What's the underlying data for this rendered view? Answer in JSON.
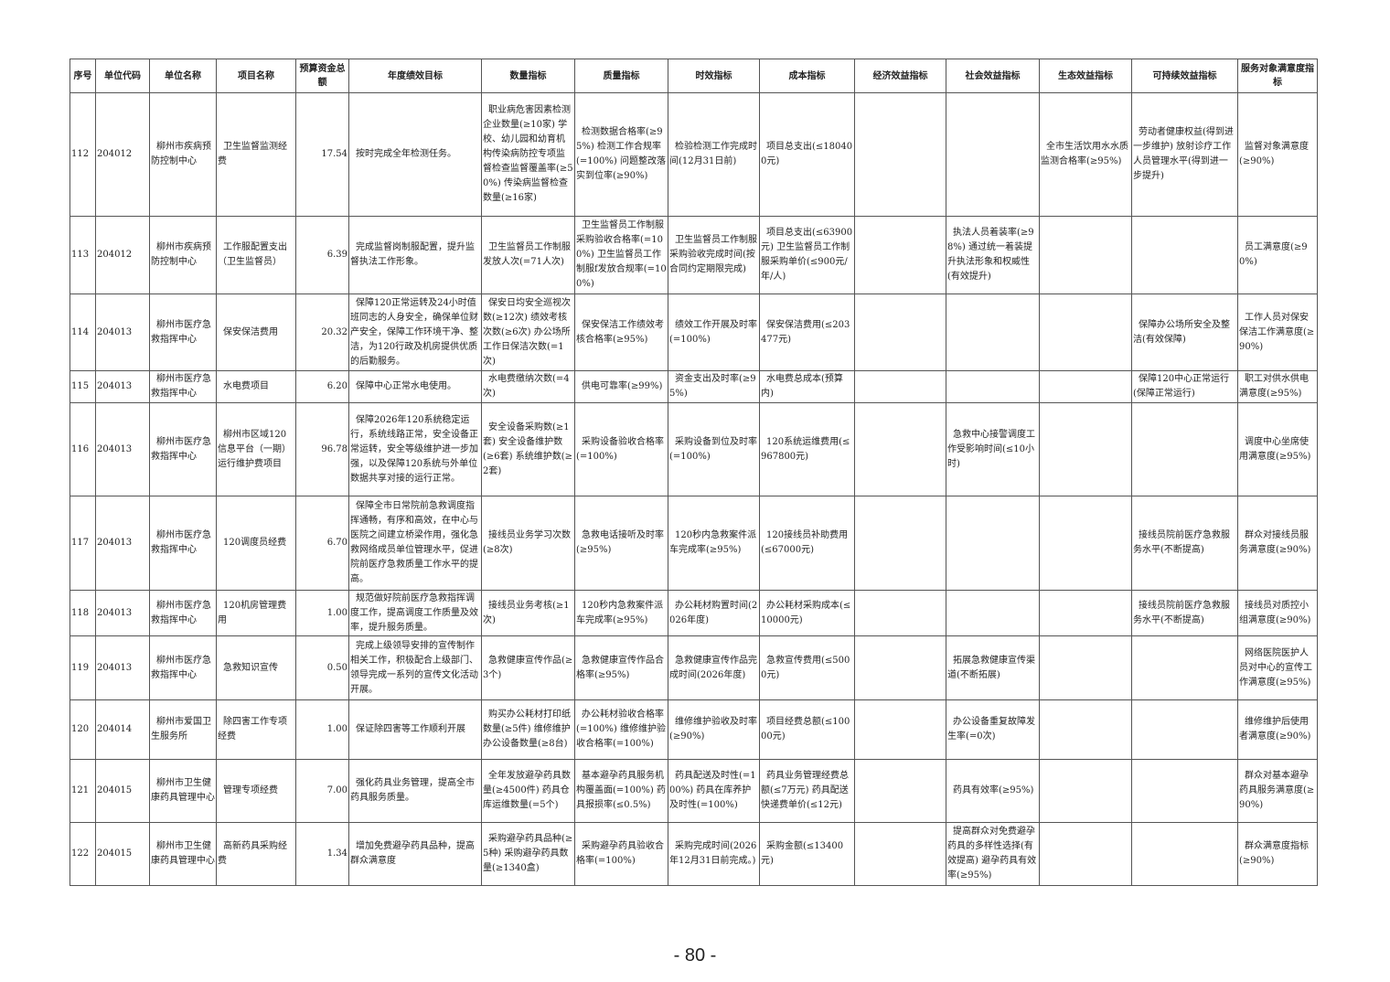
{
  "table": {
    "headers": [
      "序号",
      "单位代码",
      "单位名称",
      "项目名称",
      "预算资金总额",
      "年度绩效目标",
      "数量指标",
      "质量指标",
      "时效指标",
      "成本指标",
      "经济效益指标",
      "社会效益指标",
      "生态效益指标",
      "可持续效益指标",
      "服务对象满意度指标"
    ],
    "rows": [
      [
        "112",
        "204012",
        "柳州市疾病预防控制中心",
        "卫生监督监测经费",
        "17.54",
        "按时完成全年检测任务。",
        "职业病危害因素检测企业数量(≥10家) 学校、幼儿园和幼育机构传染病防控专项监督检查监督覆盖率(≥50%) 传染病监督检查数量(≥16家)",
        "检测数据合格率(≥95%) 检测工作合规率(=100%) 问题整改落实到位率(≥90%)",
        "检验检测工作完成时间(12月31日前)",
        "项目总支出(≤180400元)",
        "",
        "",
        "全市生活饮用水水质监测合格率(≥95%)",
        "劳动者健康权益(得到进一步维护) 放射诊疗工作人员管理水平(得到进一步提升)",
        "监督对象满意度(≥90%)"
      ],
      [
        "113",
        "204012",
        "柳州市疾病预防控制中心",
        "工作服配置支出（卫生监督员）",
        "6.39",
        "完成监督岗制服配置，提升监督执法工作形象。",
        "卫生监督员工作制服发放人次(=71人次)",
        "卫生监督员工作制服采购验收合格率(=100%) 卫生监督员工作制服f发放合规率(=100%)",
        "卫生监督员工作制服采购验收完成时间(按合同约定期限完成)",
        "项目总支出(≤63900元) 卫生监督员工作制服采购单价(≤900元/年/人)",
        "",
        "执法人员着装率(≥98%) 通过统一着装提升执法形象和权威性(有效提升)",
        "",
        "",
        "员工满意度(≥90%)"
      ],
      [
        "114",
        "204013",
        "柳州市医疗急救指挥中心",
        "保安保洁费用",
        "20.32",
        "保障120正常运转及24小时值班同志的人身安全，确保单位财产安全，保障工作环境干净、整洁，为120行政及机房提供优质的后勤服务。",
        "保安日均安全巡视次数(≥12次) 绩效考核次数(≥6次) 办公场所工作日保洁次数(=1次)",
        "保安保洁工作绩效考核合格率(≥95%)",
        "绩效工作开展及时率(=100%)",
        "保安保洁费用(≤203477元)",
        "",
        "",
        "",
        "保障办公场所安全及整洁(有效保障)",
        "工作人员对保安保洁工作满意度(≥90%)"
      ],
      [
        "115",
        "204013",
        "柳州市医疗急救指挥中心",
        "水电费项目",
        "6.20",
        "保障中心正常水电使用。",
        "水电费缴纳次数(=4次)",
        "供电可靠率(≥99%)",
        "资金支出及时率(≥95%)",
        "水电费总成本(预算内)",
        "",
        "",
        "",
        "保障120中心正常运行(保障正常运行)",
        "职工对供水供电满意度(≥95%)"
      ],
      [
        "116",
        "204013",
        "柳州市医疗急救指挥中心",
        "柳州市区域120信息平台（一期）运行维护费项目",
        "96.78",
        "保障2026年120系统稳定运行，系统线路正常，安全设备正常运转，安全等级维护进一步加强，以及保障120系统与外单位数据共享对接的运行正常。",
        "安全设备采购数(≥1套) 安全设备维护数(≥6套) 系统维护数(≥2套)",
        "采购设备验收合格率(=100%)",
        "采购设备到位及时率(=100%)",
        "120系统运维费用(≤967800元)",
        "",
        "急救中心接警调度工作受影响时间(≤10小时)",
        "",
        "",
        "调度中心坐席使用满意度(≥95%)"
      ],
      [
        "117",
        "204013",
        "柳州市医疗急救指挥中心",
        "120调度员经费",
        "6.70",
        "保障全市日常院前急救调度指挥通畅，有序和高效，在中心与医院之间建立桥梁作用，强化急救网络成员单位管理水平，促进院前医疗急救质量工作水平的提高。",
        "接线员业务学习次数(≥8次)",
        "急救电话接听及时率(≥95%)",
        "120秒内急救案件派车完成率(≥95%)",
        "120接线员补助费用(≤67000元)",
        "",
        "",
        "",
        "接线员院前医疗急救服务水平(不断提高)",
        "群众对接线员服务满意度(≥90%)"
      ],
      [
        "118",
        "204013",
        "柳州市医疗急救指挥中心",
        "120机房管理费用",
        "1.00",
        "规范做好院前医疗急救指挥调度工作，提高调度工作质量及效率，提升服务质量。",
        "接线员业务考核(≥1次)",
        "120秒内急救案件派车完成率(≥95%)",
        "办公耗材购置时间(2026年度)",
        "办公耗材采购成本(≤10000元)",
        "",
        "",
        "",
        "接线员院前医疗急救服务水平(不断提高)",
        "接线员对质控小组满意度(≥90%)"
      ],
      [
        "119",
        "204013",
        "柳州市医疗急救指挥中心",
        "急救知识宣传",
        "0.50",
        "完成上级领导安排的宣传制作相关工作，积极配合上级部门、领导完成一系列的宣传文化活动开展。",
        "急救健康宣传作品(≥3个)",
        "急救健康宣传作品合格率(≥95%)",
        "急救健康宣传作品完成时间(2026年度)",
        "急救宣传费用(≤5000元)",
        "",
        "拓展急救健康宣传渠道(不断拓展)",
        "",
        "",
        "网络医院医护人员对中心的宣传工作满意度(≥95%)"
      ],
      [
        "120",
        "204014",
        "柳州市爱国卫生服务所",
        "除四害工作专项经费",
        "1.00",
        "保证除四害等工作顺利开展",
        "购买办公耗材打印纸数量(≥5件) 维修维护办公设备数量(≥8台)",
        "办公耗材验收合格率(=100%) 维修维护验收合格率(=100%)",
        "维修维护验收及时率(≥90%)",
        "项目经费总额(≤10000元)",
        "",
        "办公设备重复故障发生率(=0次)",
        "",
        "",
        "维修维护后使用者满意度(≥90%)"
      ],
      [
        "121",
        "204015",
        "柳州市卫生健康药具管理中心",
        "管理专项经费",
        "7.00",
        "强化药具业务管理，提高全市药具服务质量。",
        "全年发放避孕药具数量(≥4500件) 药具仓库运维数量(=5个)",
        "基本避孕药具服务机构覆盖面(=100%) 药具报损率(≤0.5%)",
        "药具配送及时性(=100%) 药具在库养护及时性(=100%)",
        "药具业务管理经费总额(≤7万元) 药具配送快递费单价(≤12元)",
        "",
        "药具有效率(≥95%)",
        "",
        "",
        "群众对基本避孕药具服务满意度(≥90%)"
      ],
      [
        "122",
        "204015",
        "柳州市卫生健康药具管理中心",
        "高新药具采购经费",
        "1.34",
        "增加免费避孕药具品种，提高群众满意度",
        "采购避孕药具品种(≥5种) 采购避孕药具数量(≥1340盒)",
        "采购避孕药具验收合格率(=100%)",
        "采购完成时间(2026年12月31日前完成。)",
        "采购金额(≤13400元)",
        "",
        "提高群众对免费避孕药具的多样性选择(有效提高) 避孕药具有效率(≥95%)",
        "",
        "",
        "群众满意度指标(≥90%)"
      ]
    ]
  },
  "footer": {
    "page_number": "- 80 -"
  }
}
